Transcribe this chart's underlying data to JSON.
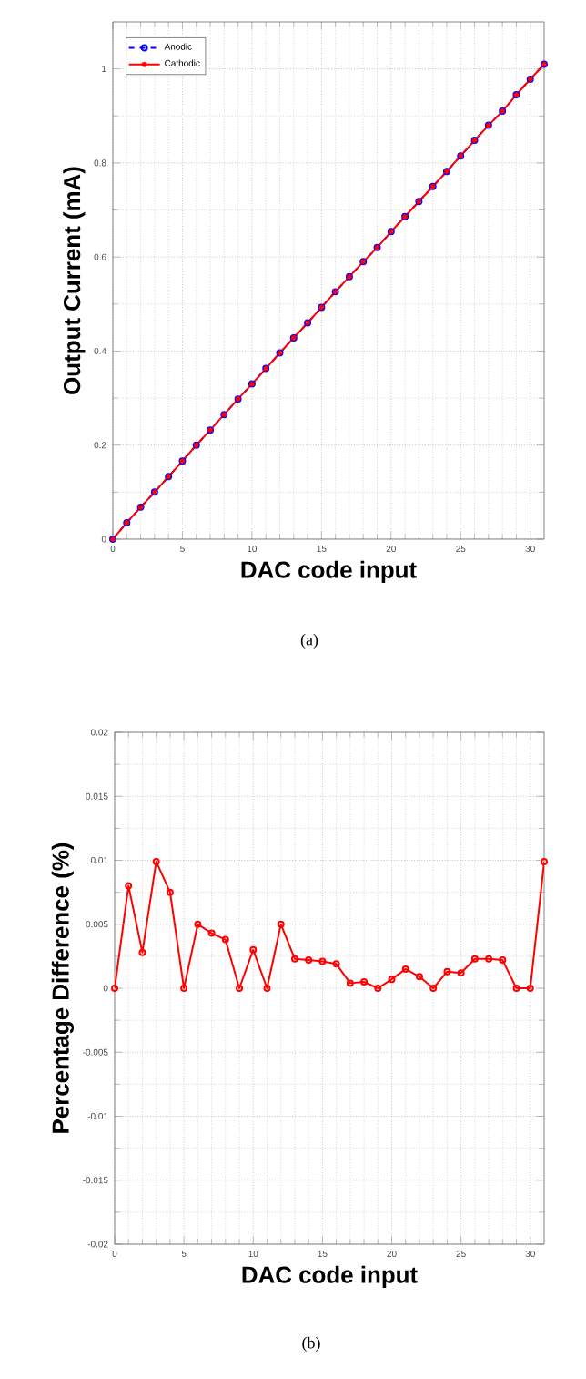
{
  "chart_data": [
    {
      "type": "line",
      "xlabel": "DAC code input",
      "ylabel": "Output Current (mA)",
      "annotations": [
        "(a)"
      ],
      "x": [
        0,
        1,
        2,
        3,
        4,
        5,
        6,
        7,
        8,
        9,
        10,
        11,
        12,
        13,
        14,
        15,
        16,
        17,
        18,
        19,
        20,
        21,
        22,
        23,
        24,
        25,
        26,
        27,
        28,
        29,
        30,
        31
      ],
      "series": [
        {
          "name": "Anodic",
          "color": "#0000ff",
          "marker": "circle",
          "line_style": "dashed",
          "values": [
            0,
            0.035,
            0.068,
            0.1,
            0.133,
            0.166,
            0.2,
            0.232,
            0.265,
            0.298,
            0.33,
            0.363,
            0.396,
            0.428,
            0.46,
            0.493,
            0.526,
            0.558,
            0.59,
            0.62,
            0.654,
            0.686,
            0.718,
            0.75,
            0.782,
            0.815,
            0.848,
            0.88,
            0.91,
            0.945,
            0.978,
            1.01
          ]
        },
        {
          "name": "Cathodic",
          "color": "#ff0000",
          "marker": "cross",
          "line_style": "solid",
          "values": [
            0,
            0.035,
            0.068,
            0.1,
            0.133,
            0.166,
            0.2,
            0.232,
            0.265,
            0.298,
            0.33,
            0.363,
            0.396,
            0.428,
            0.46,
            0.493,
            0.526,
            0.558,
            0.59,
            0.62,
            0.654,
            0.686,
            0.718,
            0.75,
            0.782,
            0.815,
            0.848,
            0.88,
            0.91,
            0.945,
            0.978,
            1.01
          ]
        }
      ],
      "xlim": [
        0,
        31
      ],
      "ylim": [
        0,
        1.1
      ],
      "xticks": [
        0,
        5,
        10,
        15,
        20,
        25,
        30
      ],
      "yticks": [
        0,
        0.2,
        0.4,
        0.6,
        0.8,
        1
      ],
      "grid": true,
      "legend": "top left"
    },
    {
      "type": "line",
      "xlabel": "DAC code input",
      "ylabel": "Percentage Difference (%)",
      "annotations": [
        "(b)"
      ],
      "x": [
        0,
        1,
        2,
        3,
        4,
        5,
        6,
        7,
        8,
        9,
        10,
        11,
        12,
        13,
        14,
        15,
        16,
        17,
        18,
        19,
        20,
        21,
        22,
        23,
        24,
        25,
        26,
        27,
        28,
        29,
        30,
        31
      ],
      "series": [
        {
          "color": "#ff0000",
          "marker": "circle",
          "line_style": "solid",
          "values": [
            0,
            0.008,
            0.0028,
            0.0099,
            0.0075,
            0,
            0.005,
            0.0043,
            0.0038,
            0,
            0.003,
            0,
            0.005,
            0.0023,
            0.0022,
            0.0021,
            0.0019,
            0.0004,
            0.0005,
            0,
            0.0007,
            0.0015,
            0.0009,
            0,
            0.0013,
            0.0012,
            0.0023,
            0.0023,
            0.0022,
            0,
            0,
            0.0099
          ]
        }
      ],
      "xlim": [
        0,
        31
      ],
      "ylim": [
        -0.02,
        0.02
      ],
      "xticks": [
        0,
        5,
        10,
        15,
        20,
        25,
        30
      ],
      "yticks": [
        -0.02,
        -0.015,
        -0.01,
        -0.005,
        0,
        0.005,
        0.01,
        0.015,
        0.02
      ],
      "grid": true
    }
  ]
}
